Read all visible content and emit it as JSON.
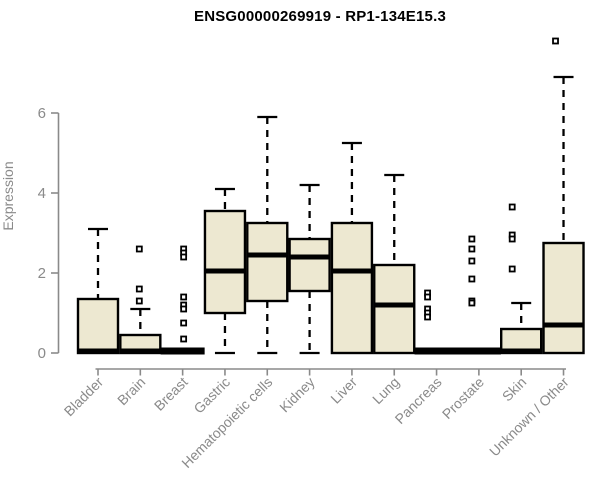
{
  "title": "ENSG00000269919 - RP1-134E15.3",
  "chart_data": {
    "type": "boxplot",
    "title": "ENSG00000269919 - RP1-134E15.3",
    "xlabel": "",
    "ylabel": "Expression",
    "ylim": [
      -0.15,
      8.1
    ],
    "yticks": [
      0,
      2,
      4,
      6
    ],
    "grid": false,
    "legend": null,
    "categories": [
      "Bladder",
      "Brain",
      "Breast",
      "Gastric",
      "Hematopoietic cells",
      "Kidney",
      "Liver",
      "Lung",
      "Pancreas",
      "Prostate",
      "Skin",
      "Unknown / Other"
    ],
    "boxes": [
      {
        "category": "Bladder",
        "whisker_low": 0,
        "q1": 0,
        "median": 0.05,
        "q3": 1.35,
        "whisker_high": 3.1,
        "outliers": [],
        "outlier_dx": 0
      },
      {
        "category": "Brain",
        "whisker_low": 0,
        "q1": 0,
        "median": 0.05,
        "q3": 0.45,
        "whisker_high": 1.1,
        "outliers": [
          2.6,
          1.6,
          1.3
        ],
        "outlier_dx": -1
      },
      {
        "category": "Breast",
        "whisker_low": 0,
        "q1": 0,
        "median": 0,
        "q3": 0,
        "whisker_high": 0,
        "outliers": [
          2.6,
          2.5,
          2.4,
          1.4,
          1.2,
          1.1,
          0.75,
          0.35
        ],
        "outlier_dx": 1
      },
      {
        "category": "Gastric",
        "whisker_low": 0,
        "q1": 1.0,
        "median": 2.05,
        "q3": 3.55,
        "whisker_high": 4.1,
        "outliers": [],
        "outlier_dx": 0
      },
      {
        "category": "Hematopoietic cells",
        "whisker_low": 0,
        "q1": 1.3,
        "median": 2.45,
        "q3": 3.25,
        "whisker_high": 5.9,
        "outliers": [],
        "outlier_dx": 0
      },
      {
        "category": "Kidney",
        "whisker_low": 0,
        "q1": 1.55,
        "median": 2.4,
        "q3": 2.85,
        "whisker_high": 4.2,
        "outliers": [],
        "outlier_dx": 0
      },
      {
        "category": "Liver",
        "whisker_low": 0,
        "q1": 0,
        "median": 2.05,
        "q3": 3.25,
        "whisker_high": 5.25,
        "outliers": [],
        "outlier_dx": 0
      },
      {
        "category": "Lung",
        "whisker_low": 0,
        "q1": 0,
        "median": 1.2,
        "q3": 2.2,
        "whisker_high": 4.45,
        "outliers": [],
        "outlier_dx": 0
      },
      {
        "category": "Pancreas",
        "whisker_low": 0,
        "q1": 0,
        "median": 0,
        "q3": 0,
        "whisker_high": 0,
        "outliers": [
          1.5,
          1.4,
          1.1,
          1.0,
          0.9
        ],
        "outlier_dx": -9
      },
      {
        "category": "Prostate",
        "whisker_low": 0,
        "q1": 0,
        "median": 0,
        "q3": 0,
        "whisker_high": 0,
        "outliers": [
          2.85,
          2.6,
          2.3,
          1.85,
          1.3,
          1.25
        ],
        "outlier_dx": -7
      },
      {
        "category": "Skin",
        "whisker_low": 0,
        "q1": 0,
        "median": 0.05,
        "q3": 0.6,
        "whisker_high": 1.25,
        "outliers": [
          3.65,
          2.95,
          2.85,
          2.1
        ],
        "outlier_dx": -9
      },
      {
        "category": "Unknown / Other",
        "whisker_low": 0,
        "q1": 0,
        "median": 0.7,
        "q3": 2.75,
        "whisker_high": 6.9,
        "outliers": [
          7.8
        ],
        "outlier_dx": -8
      }
    ],
    "colors": {
      "box_fill": "#EDE8D1",
      "box_border": "#000000",
      "median": "#000000",
      "whisker": "#000000",
      "outlier": "#000000",
      "axis": "#8a8a8a",
      "tick_label": "#8a8a8a",
      "title": "#000000",
      "background": "#ffffff"
    }
  }
}
